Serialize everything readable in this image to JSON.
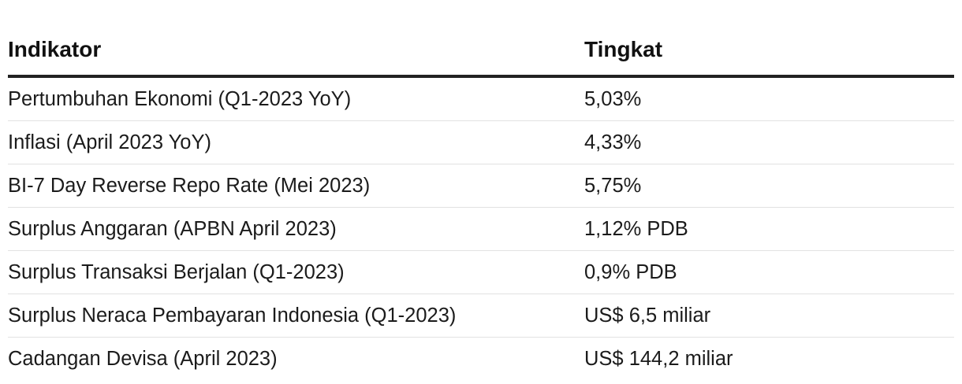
{
  "table": {
    "headers": [
      "Indikator",
      "Tingkat"
    ],
    "rows": [
      [
        "Pertumbuhan Ekonomi (Q1-2023 YoY)",
        "5,03%"
      ],
      [
        "Inflasi (April 2023 YoY)",
        "4,33%"
      ],
      [
        "BI-7 Day Reverse Repo Rate (Mei 2023)",
        "5,75%"
      ],
      [
        "Surplus Anggaran (APBN April 2023)",
        "1,12% PDB"
      ],
      [
        "Surplus Transaksi Berjalan (Q1-2023)",
        "0,9% PDB"
      ],
      [
        "Surplus Neraca Pembayaran Indonesia (Q1-2023)",
        "US$ 6,5 miliar"
      ],
      [
        "Cadangan Devisa (April 2023)",
        "US$ 144,2 miliar"
      ]
    ]
  }
}
